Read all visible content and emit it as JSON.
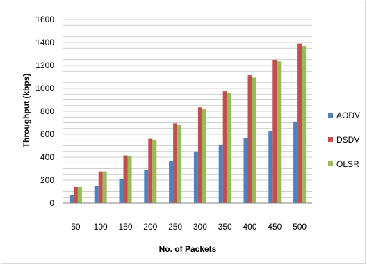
{
  "chart_data": {
    "type": "bar",
    "title": "",
    "xlabel": "No. of Packets",
    "ylabel": "Throughput (kbps)",
    "categories": [
      "50",
      "100",
      "150",
      "200",
      "250",
      "300",
      "350",
      "400",
      "450",
      "500"
    ],
    "ylim": [
      0,
      1600
    ],
    "yticks": [
      0,
      200,
      400,
      600,
      800,
      1000,
      1200,
      1400,
      1600
    ],
    "grid": true,
    "legend_position": "right",
    "series": [
      {
        "name": "AODV",
        "color": "#4f81bd",
        "values": [
          70,
          150,
          210,
          290,
          365,
          450,
          510,
          570,
          630,
          710
        ]
      },
      {
        "name": "DSDV",
        "color": "#c0504d",
        "values": [
          140,
          275,
          415,
          560,
          695,
          835,
          975,
          1115,
          1250,
          1390
        ]
      },
      {
        "name": "OLSR",
        "color": "#9bbb59",
        "values": [
          140,
          275,
          410,
          550,
          685,
          825,
          965,
          1095,
          1235,
          1370
        ]
      }
    ]
  }
}
